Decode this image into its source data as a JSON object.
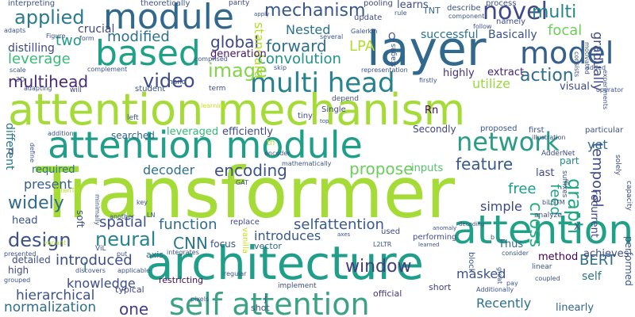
{
  "words": [
    {
      "text": "Transformer",
      "color": "#a5db36"
    },
    {
      "text": "attention mechanism",
      "color": "#a5db36"
    },
    {
      "text": "architecture",
      "color": "#1f9e89"
    },
    {
      "text": "attention module",
      "color": "#1f9e89"
    },
    {
      "text": "self attention",
      "color": "#3ba284"
    },
    {
      "text": "layer",
      "color": "#31688e"
    },
    {
      "text": "module",
      "color": "#31688e"
    },
    {
      "text": "based",
      "color": "#1fa188"
    },
    {
      "text": "attention",
      "color": "#1fa188"
    },
    {
      "text": "multi head",
      "color": "#26828e"
    },
    {
      "text": "model",
      "color": "#355f8d"
    },
    {
      "text": "network",
      "color": "#2c9c89"
    },
    {
      "text": "mechanism",
      "color": "#38588c"
    },
    {
      "text": "novel",
      "color": "#3e4989"
    },
    {
      "text": "applied",
      "color": "#2a7b8e"
    },
    {
      "text": "multi",
      "color": "#25838e"
    },
    {
      "text": "image",
      "color": "#84d44b"
    },
    {
      "text": "action",
      "color": "#2f6c8e"
    },
    {
      "text": "video",
      "color": "#3e4c8a"
    },
    {
      "text": "window",
      "color": "#443b84"
    },
    {
      "text": "neural",
      "color": "#25848e"
    },
    {
      "text": "design",
      "color": "#3b528b"
    },
    {
      "text": "widely",
      "color": "#306a8e"
    },
    {
      "text": "feature",
      "color": "#38598c"
    },
    {
      "text": "propose",
      "color": "#6ccd5a"
    },
    {
      "text": "encoding",
      "color": "#3b528b"
    },
    {
      "text": "function",
      "color": "#2e6e8e"
    },
    {
      "text": "CNN",
      "color": "#2a768e"
    },
    {
      "text": "spatial",
      "color": "#3c508b"
    },
    {
      "text": "graph",
      "color": "#22a785"
    },
    {
      "text": "global",
      "color": "#3f4788"
    },
    {
      "text": "forward",
      "color": "#2e6f8e"
    },
    {
      "text": "convolution",
      "color": "#20928c"
    },
    {
      "text": "Nested",
      "color": "#2c728e"
    },
    {
      "text": "LPA",
      "color": "#b2dd2d"
    },
    {
      "text": "focal",
      "color": "#6ece58"
    },
    {
      "text": "modified",
      "color": "#2d718e"
    },
    {
      "text": "leverage",
      "color": "#3aba76"
    },
    {
      "text": "multihead",
      "color": "#482878"
    },
    {
      "text": "distilling",
      "color": "#3f4788"
    },
    {
      "text": "crucial",
      "color": "#3f4788"
    },
    {
      "text": "two",
      "color": "#1e9c89"
    },
    {
      "text": "gradually",
      "color": "#3f4788"
    },
    {
      "text": "temporal",
      "color": "#3e4a89"
    },
    {
      "text": "Basically",
      "color": "#3b528b"
    },
    {
      "text": "successful",
      "color": "#2d718e"
    },
    {
      "text": "standard",
      "color": "#b5de2b"
    },
    {
      "text": "generation",
      "color": "#48186a"
    },
    {
      "text": "introduced",
      "color": "#3c4f8a"
    },
    {
      "text": "knowledge",
      "color": "#3e4c8a"
    },
    {
      "text": "hierarchical",
      "color": "#3b528b"
    },
    {
      "text": "normalization",
      "color": "#2e6e8e"
    },
    {
      "text": "one",
      "color": "#433e85"
    },
    {
      "text": "Recently",
      "color": "#2c728e"
    },
    {
      "text": "masked",
      "color": "#3b528b"
    },
    {
      "text": "BERT",
      "color": "#2e6f8e"
    },
    {
      "text": "simple",
      "color": "#3f4889"
    },
    {
      "text": "free",
      "color": "#1e9b8a"
    },
    {
      "text": "feed",
      "color": "#1fa187"
    },
    {
      "text": "present",
      "color": "#355e8d"
    },
    {
      "text": "required",
      "color": "#2c738e"
    },
    {
      "text": "decoder",
      "color": "#2d708e"
    },
    {
      "text": "cross",
      "color": "#28ae80"
    },
    {
      "text": "different",
      "color": "#2a788e"
    },
    {
      "text": "selfattention",
      "color": "#38598c"
    },
    {
      "text": "introduces",
      "color": "#38598c"
    },
    {
      "text": "leveraged",
      "color": "#35b779"
    },
    {
      "text": "efficiently",
      "color": "#3f4889"
    },
    {
      "text": "searched",
      "color": "#32648e"
    },
    {
      "text": "utilize",
      "color": "#98d83e"
    },
    {
      "text": "highly",
      "color": "#472d7b"
    },
    {
      "text": "extract",
      "color": "#482576"
    },
    {
      "text": "visual",
      "color": "#3d4d8a"
    },
    {
      "text": "yet",
      "color": "#2e6f8e"
    },
    {
      "text": "last",
      "color": "#3f4788"
    },
    {
      "text": "inputs",
      "color": "#50c46a"
    },
    {
      "text": "part",
      "color": "#238a8d"
    },
    {
      "text": "recurrent",
      "color": "#3e4989"
    },
    {
      "text": "performed",
      "color": "#3a538b"
    },
    {
      "text": "achieves",
      "color": "#3e4c8a"
    },
    {
      "text": "self",
      "color": "#2a788e"
    },
    {
      "text": "linearly",
      "color": "#32658e"
    },
    {
      "text": "method",
      "color": "#440154"
    },
    {
      "text": "Thus",
      "color": "#31688e"
    },
    {
      "text": "focus",
      "color": "#3b528b"
    },
    {
      "text": "vector",
      "color": "#30698e"
    },
    {
      "text": "axis",
      "color": "#2f6b8e"
    },
    {
      "text": "soft",
      "color": "#3d4e8a"
    },
    {
      "text": "head",
      "color": "#3b528b"
    },
    {
      "text": "detailed",
      "color": "#3e4c8a"
    },
    {
      "text": "high",
      "color": "#3f4889"
    },
    {
      "text": "typical",
      "color": "#3f4788"
    },
    {
      "text": "restricting",
      "color": "#460a5d"
    },
    {
      "text": "official",
      "color": "#453781"
    },
    {
      "text": "short",
      "color": "#414487"
    },
    {
      "text": "shot",
      "color": "#3b528b"
    },
    {
      "text": "j",
      "color": "#3e4989"
    },
    {
      "text": "l",
      "color": "#2a788e"
    },
    {
      "text": "Rn",
      "color": "#440154"
    },
    {
      "text": "Secondly",
      "color": "#414487"
    },
    {
      "text": "proposed",
      "color": "#3a548c"
    },
    {
      "text": "first",
      "color": "#3b528b"
    },
    {
      "text": "particular",
      "color": "#3b528b"
    },
    {
      "text": "AdderNet",
      "color": "#3e4c8a"
    },
    {
      "text": "suffixes",
      "color": "#3e4c8a"
    },
    {
      "text": "solely",
      "color": "#3e4989"
    },
    {
      "text": "capacity",
      "color": "#3e4989"
    },
    {
      "text": "tiny",
      "color": "#3f4788"
    },
    {
      "text": "Single",
      "color": "#3f4788"
    },
    {
      "text": "depend",
      "color": "#3b528b"
    },
    {
      "text": "learns",
      "color": "#3e4c8a"
    },
    {
      "text": "TNT",
      "color": "#31688e"
    },
    {
      "text": "describe",
      "color": "#3b528b"
    },
    {
      "text": "process",
      "color": "#3b528b"
    },
    {
      "text": "namely",
      "color": "#3e4c8a"
    },
    {
      "text": "pooling",
      "color": "#3e4989"
    },
    {
      "text": "update",
      "color": "#3e4989"
    },
    {
      "text": "theoretically",
      "color": "#3b528b"
    },
    {
      "text": "interpreting",
      "color": "#3b528b"
    },
    {
      "text": "parity",
      "color": "#3f4788"
    },
    {
      "text": "student",
      "color": "#3b528b"
    },
    {
      "text": "hand",
      "color": "#3e4c8a"
    },
    {
      "text": "term",
      "color": "#3e4989"
    },
    {
      "text": "will",
      "color": "#3f4788"
    },
    {
      "text": "replace",
      "color": "#3e4989"
    },
    {
      "text": "performing",
      "color": "#3e4c8a"
    },
    {
      "text": "used",
      "color": "#3e4c8a"
    },
    {
      "text": "implement",
      "color": "#3e4c8a"
    },
    {
      "text": "analyze",
      "color": "#3e4c8a"
    },
    {
      "text": "X",
      "color": "#3b528b"
    },
    {
      "text": "Q",
      "color": "#3b528b"
    },
    {
      "text": "d",
      "color": "#3b528b"
    },
    {
      "text": "left",
      "color": "#3b528b"
    },
    {
      "text": "vanilla",
      "color": "#c8e020"
    },
    {
      "text": "ViL",
      "color": "#3b528b"
    },
    {
      "text": "L2LTR",
      "color": "#3b528b"
    },
    {
      "text": "regular",
      "color": "#3b528b"
    },
    {
      "text": "pixels",
      "color": "#3b528b"
    },
    {
      "text": "applicable",
      "color": "#3b528b"
    },
    {
      "text": "put",
      "color": "#3b528b"
    },
    {
      "text": "integrates",
      "color": "#3b528b"
    },
    {
      "text": "discovers",
      "color": "#3b528b"
    },
    {
      "text": "grouped",
      "color": "#3b528b"
    },
    {
      "text": "addition",
      "color": "#3b528b"
    },
    {
      "text": "define",
      "color": "#3b528b"
    },
    {
      "text": "th",
      "color": "#b8de29"
    },
    {
      "text": "encoder",
      "color": "#3b528b"
    },
    {
      "text": "mathematically",
      "color": "#3b528b"
    },
    {
      "text": "GAT",
      "color": "#3b528b"
    },
    {
      "text": "another",
      "color": "#3b528b"
    },
    {
      "text": "minimally",
      "color": "#3b528b"
    },
    {
      "text": "variant",
      "color": "#b5de2b"
    },
    {
      "text": "presented",
      "color": "#3b528b"
    },
    {
      "text": "AttenTD",
      "color": "#b5de2b"
    },
    {
      "text": "key",
      "color": "#3b528b"
    },
    {
      "text": "LN",
      "color": "#3b528b"
    },
    {
      "text": "skip",
      "color": "#3b528b"
    },
    {
      "text": "representation",
      "color": "#3b528b"
    },
    {
      "text": "firstly",
      "color": "#3b528b"
    },
    {
      "text": "complement",
      "color": "#3b528b"
    },
    {
      "text": "comprised",
      "color": "#3b528b"
    },
    {
      "text": "adapting",
      "color": "#3b528b"
    },
    {
      "text": "scale",
      "color": "#3b528b"
    },
    {
      "text": "3D",
      "color": "#3b528b"
    },
    {
      "text": "Figure",
      "color": "#3b528b"
    },
    {
      "text": "adapts",
      "color": "#3b528b"
    },
    {
      "text": "form",
      "color": "#3b528b"
    },
    {
      "text": "Galerkin",
      "color": "#3b528b"
    },
    {
      "text": "several",
      "color": "#3b528b"
    },
    {
      "text": "stages",
      "color": "#3b528b"
    },
    {
      "text": "rule",
      "color": "#3b528b"
    },
    {
      "text": "component",
      "color": "#3b528b"
    },
    {
      "text": "follow",
      "color": "#3b528b"
    },
    {
      "text": "consists",
      "color": "#3b528b"
    },
    {
      "text": "motivated",
      "color": "#3b528b"
    },
    {
      "text": "added",
      "color": "#3b528b"
    },
    {
      "text": "experiments",
      "color": "#3b528b"
    },
    {
      "text": "operator",
      "color": "#3b528b"
    },
    {
      "text": "illustration",
      "color": "#3b528b"
    },
    {
      "text": "biLSTM",
      "color": "#3b528b"
    },
    {
      "text": "pay",
      "color": "#3b528b"
    },
    {
      "text": "coupled",
      "color": "#3b528b"
    },
    {
      "text": "Additionally",
      "color": "#3b528b"
    },
    {
      "text": "consider",
      "color": "#3b528b"
    },
    {
      "text": "block",
      "color": "#3b528b"
    },
    {
      "text": "linear",
      "color": "#3b528b"
    },
    {
      "text": "great",
      "color": "#3b528b"
    },
    {
      "text": "decoding",
      "color": "#3b528b"
    },
    {
      "text": "anomaly",
      "color": "#3b528b"
    },
    {
      "text": "learned",
      "color": "#3b528b"
    },
    {
      "text": "axes",
      "color": "#3b528b"
    },
    {
      "text": "b",
      "color": "#3b528b"
    },
    {
      "text": "learning",
      "color": "#c8e020"
    },
    {
      "text": "top",
      "color": "#3b528b"
    },
    {
      "text": "apply",
      "color": "#3b528b"
    }
  ]
}
